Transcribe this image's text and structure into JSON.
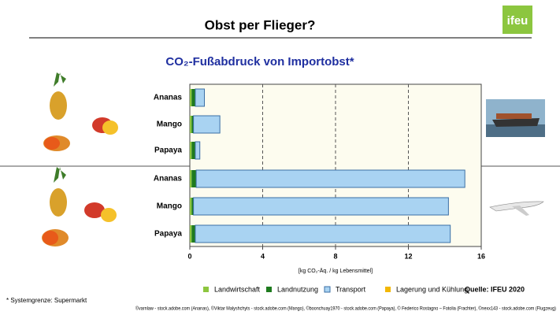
{
  "page": {
    "title": "Obst per Flieger?",
    "logo": "ifeu",
    "source": "Quelle: IFEU 2020",
    "footnote": "* Systemgrenze: Supermarkt",
    "credits": "©varnlaw - stock.adobe.com (Ananas), ©Viktar Malyshchyts - stock.adobe.com (Mango), ©boonchuay1970 - stock.adobe.com (Papaya), © Federico Rostagno – Fotolia (Frachter), ©nexx143 - stock.adobe.com (Flugzeug)"
  },
  "chart_data": {
    "type": "bar",
    "orientation": "horizontal",
    "stacked": true,
    "title": "CO₂-Fußabdruck von Importobst*",
    "x_label": "[kg CO₂-Äq. / kg Lebensmittel]",
    "categories": [
      "Ananas",
      "Mango",
      "Papaya",
      "Ananas",
      "Mango",
      "Papaya"
    ],
    "series": [
      {
        "name": "Landwirtschaft",
        "color": "#8dc63f",
        "values": [
          0.1,
          0.1,
          0.1,
          0.1,
          0.1,
          0.1
        ]
      },
      {
        "name": "Landnutzung",
        "color": "#1e7b1e",
        "values": [
          0.2,
          0.1,
          0.2,
          0.25,
          0.1,
          0.2
        ]
      },
      {
        "name": "Transport",
        "color": "#a9d3f2",
        "values": [
          0.5,
          1.45,
          0.25,
          14.75,
          14.0,
          14.0
        ]
      },
      {
        "name": "Lagerung und Kühlung",
        "color": "#f2b705",
        "values": [
          0,
          0,
          0,
          0,
          0,
          0
        ]
      }
    ],
    "xlim": [
      0,
      16
    ],
    "xticks": [
      0,
      4,
      8,
      12,
      16
    ],
    "grid": true
  }
}
